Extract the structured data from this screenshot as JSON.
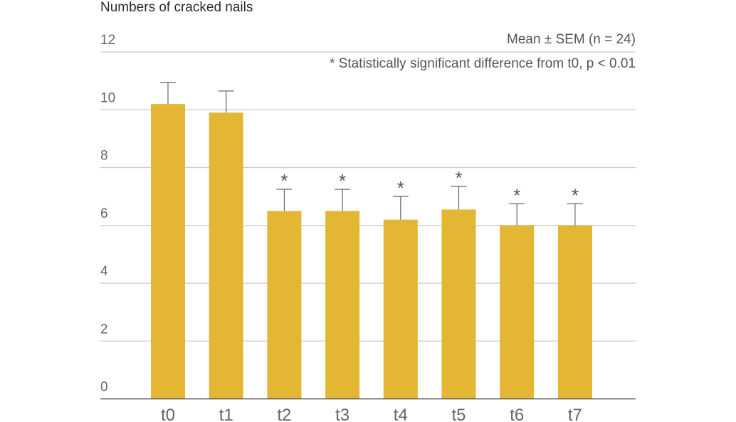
{
  "chart_data": {
    "type": "bar",
    "ylabel": "Numbers of cracked nails",
    "xlabel": "",
    "title": "",
    "categories": [
      "t0",
      "t1",
      "t2",
      "t3",
      "t4",
      "t5",
      "t6",
      "t7"
    ],
    "values": [
      10.2,
      9.9,
      6.5,
      6.5,
      6.2,
      6.55,
      6.0,
      6.0
    ],
    "errors": [
      0.75,
      0.75,
      0.75,
      0.75,
      0.8,
      0.8,
      0.75,
      0.75
    ],
    "significant": [
      false,
      false,
      true,
      true,
      true,
      true,
      true,
      true
    ],
    "significance_marker": "*",
    "ylim": [
      0,
      12
    ],
    "yticks": [
      0,
      2,
      4,
      6,
      8,
      10,
      12
    ],
    "grid": true,
    "notes": [
      "Mean ± SEM (n = 24)",
      "* Statistically significant difference from t0, p < 0.01"
    ],
    "colors": {
      "bar": "#E3B634",
      "grid": "#c8c8c8",
      "axis": "#555555",
      "text": "#666666"
    }
  }
}
